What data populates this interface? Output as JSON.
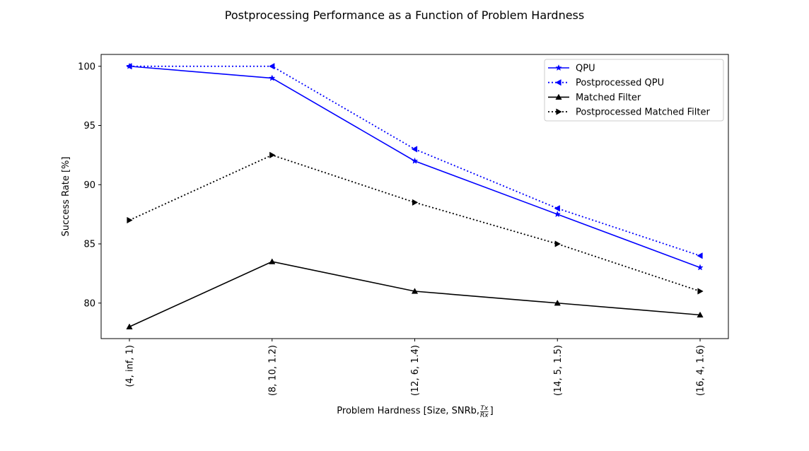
{
  "chart_data": {
    "type": "line",
    "title": "Postprocessing Performance as a Function of Problem Hardness",
    "xlabel_main": "Problem Hardness [Size, SNRb, ",
    "xlabel_frac_num": "Tx",
    "xlabel_frac_den": "Rx",
    "xlabel_close": "]",
    "ylabel": "Success Rate [%]",
    "categories": [
      "(4, inf, 1)",
      "(8, 10, 1.2)",
      "(12, 6, 1.4)",
      "(14, 5, 1.5)",
      "(16, 4, 1.6)"
    ],
    "ylim": [
      77,
      101
    ],
    "yticks": [
      80,
      85,
      90,
      95,
      100
    ],
    "grid": false,
    "legend_position": "upper right",
    "series": [
      {
        "name": "QPU",
        "values": [
          100,
          99,
          92,
          87.5,
          83
        ],
        "color": "#0000ff",
        "dash": "solid",
        "marker": "star"
      },
      {
        "name": "Postprocessed QPU",
        "values": [
          100,
          100,
          93,
          88,
          84
        ],
        "color": "#0000ff",
        "dash": "dotted",
        "marker": "triangle-left"
      },
      {
        "name": "Matched Filter",
        "values": [
          78,
          83.5,
          81,
          80,
          79
        ],
        "color": "#000000",
        "dash": "solid",
        "marker": "triangle-up"
      },
      {
        "name": "Postprocessed Matched Filter",
        "values": [
          87,
          92.5,
          88.5,
          85,
          81
        ],
        "color": "#000000",
        "dash": "dotted",
        "marker": "triangle-right"
      }
    ]
  }
}
